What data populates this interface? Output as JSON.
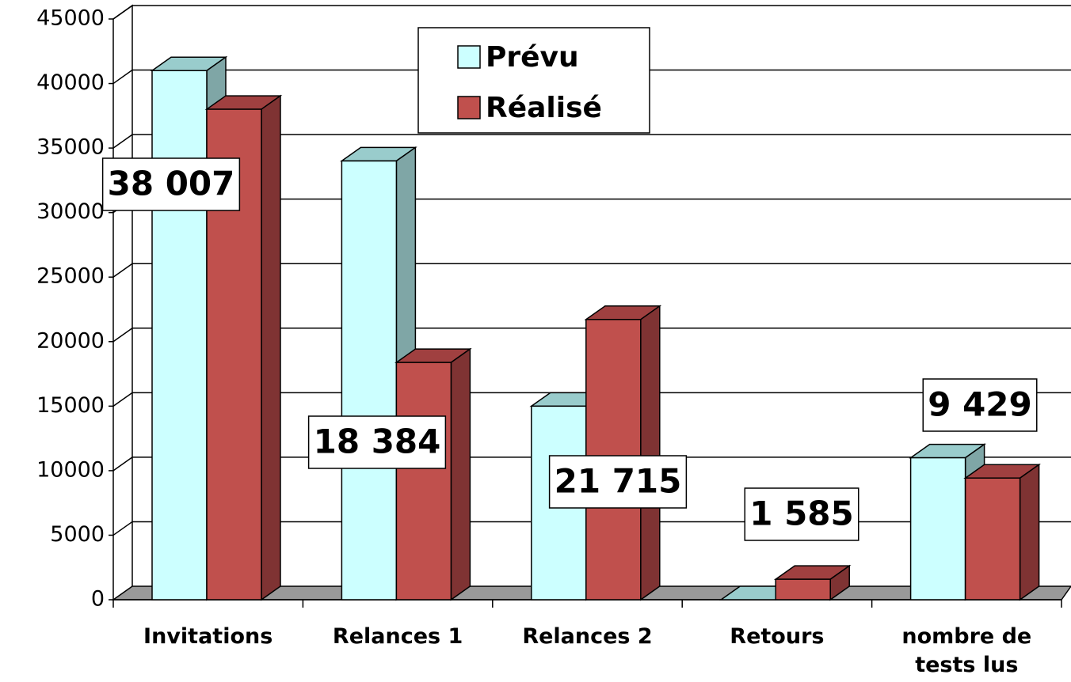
{
  "chart_data": {
    "type": "bar3d",
    "categories": [
      "Invitations",
      "Relances 1",
      "Relances 2",
      "Retours",
      "nombre de tests lus"
    ],
    "series": [
      {
        "name": "Prévu",
        "color": "#ccffff",
        "values": [
          41000,
          34000,
          15000,
          0,
          11000
        ]
      },
      {
        "name": "Réalisé",
        "color": "#c0504d",
        "values": [
          38007,
          18384,
          21715,
          1585,
          9429
        ],
        "value_labels": [
          "38 007",
          "18 384",
          "21 715",
          "1 585",
          "9 429"
        ]
      }
    ],
    "ylim": [
      0,
      45000
    ],
    "yticks": [
      0,
      5000,
      10000,
      15000,
      20000,
      25000,
      30000,
      35000,
      40000,
      45000
    ],
    "grid": true
  }
}
